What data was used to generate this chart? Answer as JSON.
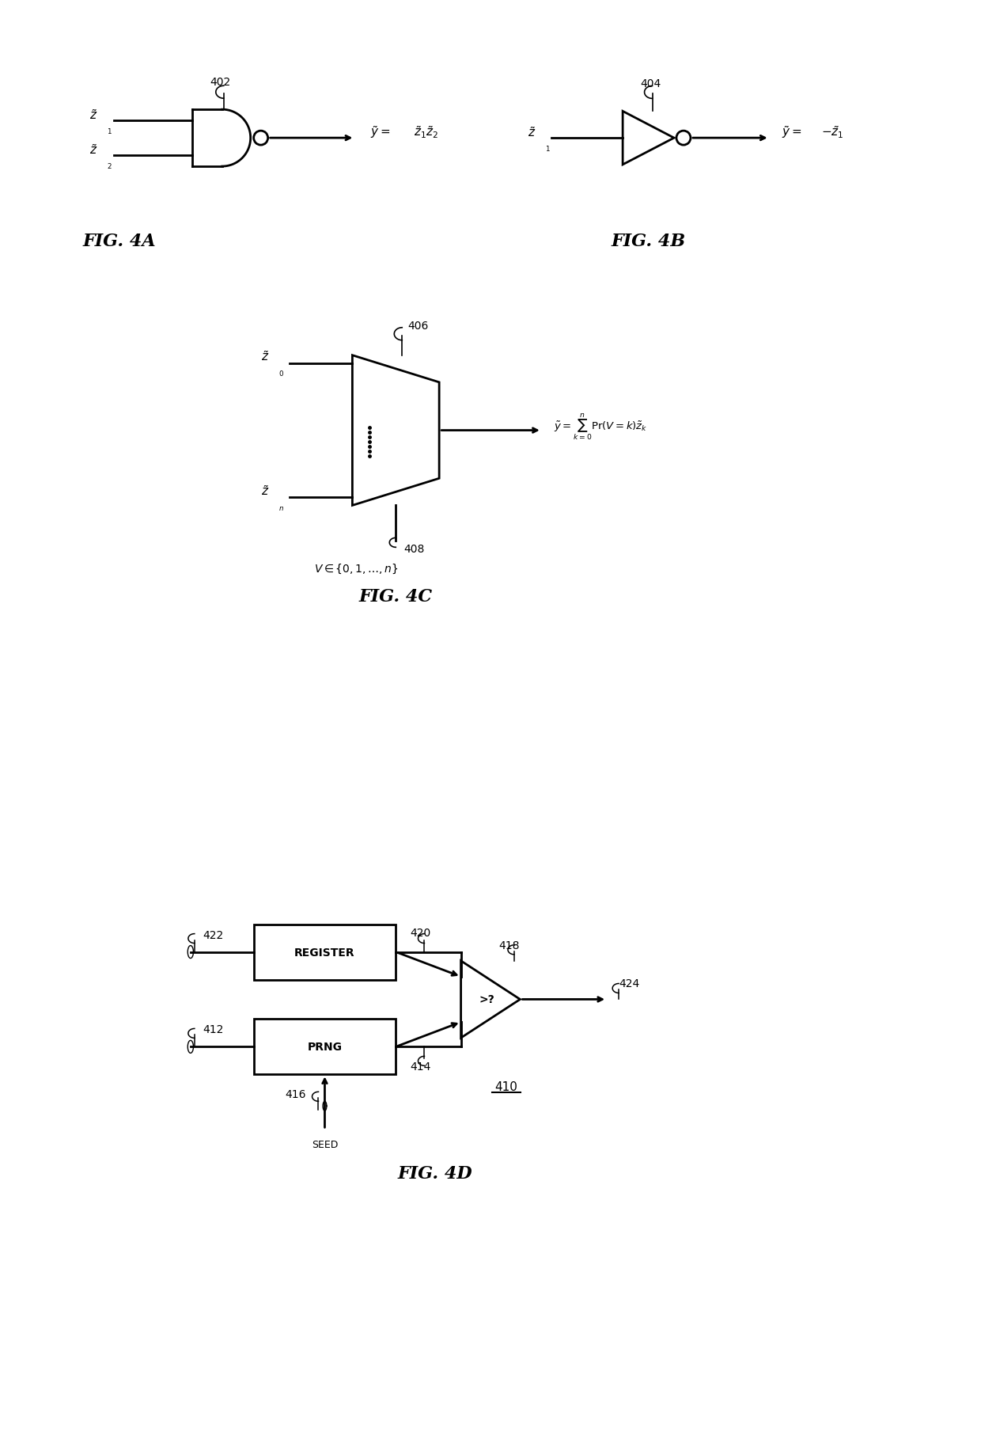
{
  "fig_width": 12.4,
  "fig_height": 18.24,
  "bg_color": "#ffffff",
  "line_color": "#000000",
  "line_width": 2.0,
  "thin_line": 1.2,
  "label_402": "402",
  "label_404": "404",
  "label_406": "406",
  "label_408": "408",
  "label_410": "410",
  "label_412": "412",
  "label_414": "414",
  "label_416": "416",
  "label_418": "418",
  "label_420": "420",
  "label_422": "422",
  "label_424": "424",
  "fig4a_title": "FIG. 4A",
  "fig4b_title": "FIG. 4B",
  "fig4c_title": "FIG. 4C",
  "fig4d_title": "FIG. 4D"
}
